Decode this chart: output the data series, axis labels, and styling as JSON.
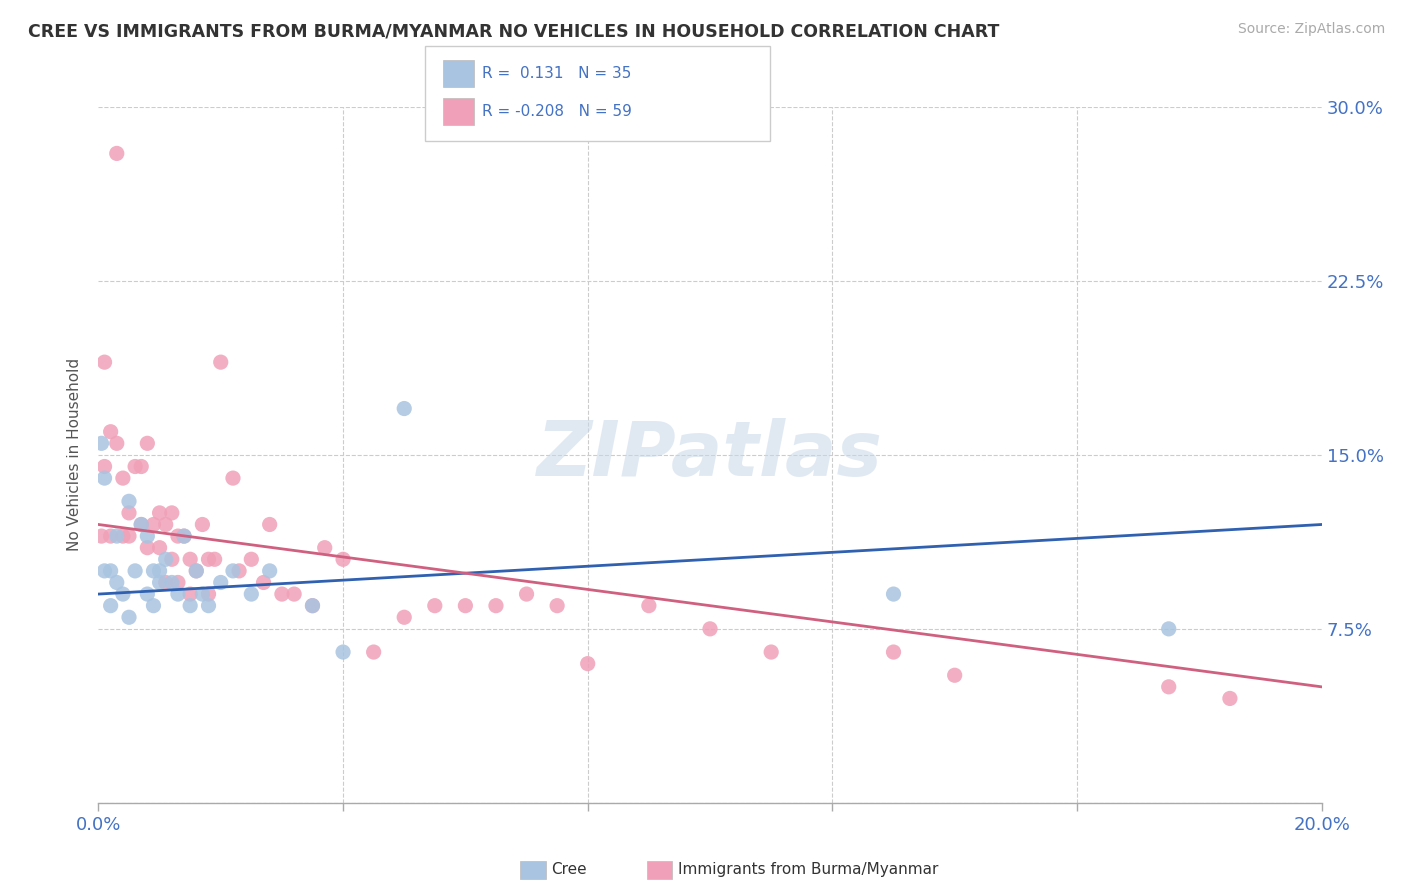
{
  "title": "CREE VS IMMIGRANTS FROM BURMA/MYANMAR NO VEHICLES IN HOUSEHOLD CORRELATION CHART",
  "source": "Source: ZipAtlas.com",
  "ylabel": "No Vehicles in Household",
  "xlim": [
    0.0,
    0.2
  ],
  "ylim": [
    0.0,
    0.3
  ],
  "xticks": [
    0.0,
    0.04,
    0.08,
    0.12,
    0.16,
    0.2
  ],
  "yticks": [
    0.0,
    0.075,
    0.15,
    0.225,
    0.3
  ],
  "ytick_labels": [
    "",
    "7.5%",
    "15.0%",
    "22.5%",
    "30.0%"
  ],
  "watermark": "ZIPatlas",
  "cree_color": "#a8c4e0",
  "burma_color": "#f0a0b8",
  "cree_line_color": "#3060b0",
  "burma_line_color": "#d06080",
  "cree_points_x": [
    0.0005,
    0.001,
    0.001,
    0.002,
    0.002,
    0.003,
    0.003,
    0.004,
    0.005,
    0.005,
    0.006,
    0.007,
    0.008,
    0.008,
    0.009,
    0.009,
    0.01,
    0.01,
    0.011,
    0.012,
    0.013,
    0.014,
    0.015,
    0.016,
    0.017,
    0.018,
    0.02,
    0.022,
    0.025,
    0.028,
    0.035,
    0.04,
    0.05,
    0.13,
    0.175
  ],
  "cree_points_y": [
    0.155,
    0.1,
    0.14,
    0.1,
    0.085,
    0.115,
    0.095,
    0.09,
    0.13,
    0.08,
    0.1,
    0.12,
    0.115,
    0.09,
    0.1,
    0.085,
    0.1,
    0.095,
    0.105,
    0.095,
    0.09,
    0.115,
    0.085,
    0.1,
    0.09,
    0.085,
    0.095,
    0.1,
    0.09,
    0.1,
    0.085,
    0.065,
    0.17,
    0.09,
    0.075
  ],
  "burma_points_x": [
    0.0005,
    0.001,
    0.001,
    0.002,
    0.002,
    0.003,
    0.003,
    0.004,
    0.004,
    0.005,
    0.005,
    0.006,
    0.007,
    0.007,
    0.008,
    0.008,
    0.009,
    0.01,
    0.01,
    0.011,
    0.011,
    0.012,
    0.012,
    0.013,
    0.013,
    0.014,
    0.015,
    0.015,
    0.016,
    0.017,
    0.018,
    0.018,
    0.019,
    0.02,
    0.022,
    0.023,
    0.025,
    0.027,
    0.028,
    0.03,
    0.032,
    0.035,
    0.037,
    0.04,
    0.045,
    0.05,
    0.055,
    0.06,
    0.065,
    0.07,
    0.075,
    0.08,
    0.09,
    0.1,
    0.11,
    0.13,
    0.14,
    0.175,
    0.185
  ],
  "burma_points_y": [
    0.115,
    0.19,
    0.145,
    0.16,
    0.115,
    0.28,
    0.155,
    0.14,
    0.115,
    0.125,
    0.115,
    0.145,
    0.145,
    0.12,
    0.155,
    0.11,
    0.12,
    0.125,
    0.11,
    0.12,
    0.095,
    0.125,
    0.105,
    0.115,
    0.095,
    0.115,
    0.105,
    0.09,
    0.1,
    0.12,
    0.105,
    0.09,
    0.105,
    0.19,
    0.14,
    0.1,
    0.105,
    0.095,
    0.12,
    0.09,
    0.09,
    0.085,
    0.11,
    0.105,
    0.065,
    0.08,
    0.085,
    0.085,
    0.085,
    0.09,
    0.085,
    0.06,
    0.085,
    0.075,
    0.065,
    0.065,
    0.055,
    0.05,
    0.045
  ]
}
